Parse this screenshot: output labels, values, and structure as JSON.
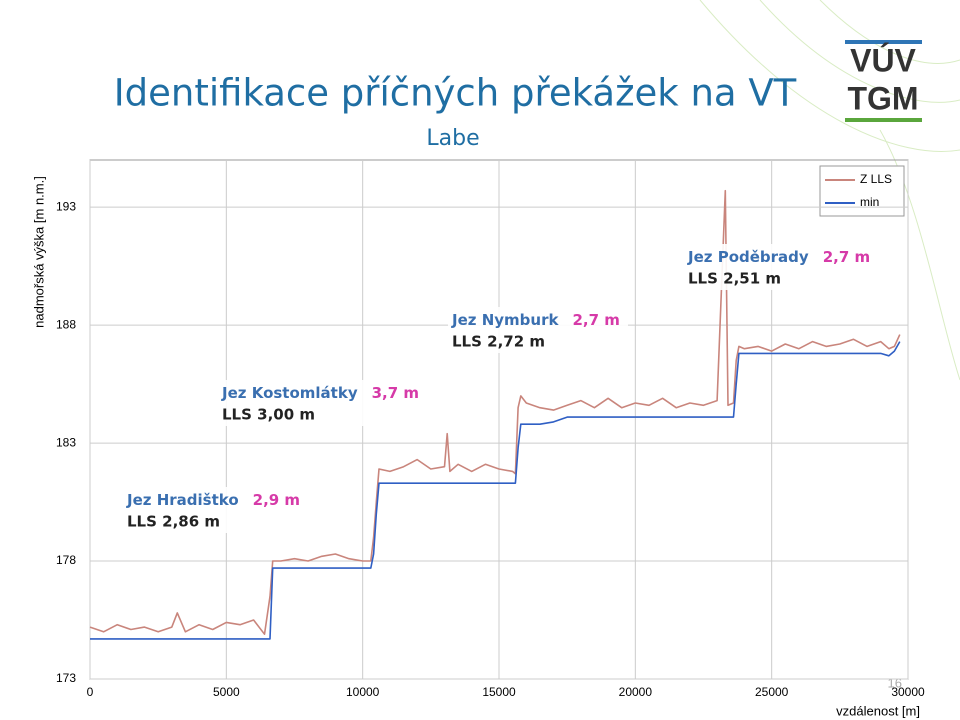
{
  "chart_data": {
    "type": "line",
    "title": "Identifikace příčných překážek na VT",
    "subtitle": "Labe",
    "ylabel": "nadmořská výška [m n.m.]",
    "xlabel": "vzdálenost [m]",
    "xlim": [
      0,
      30000
    ],
    "ylim": [
      173,
      195
    ],
    "xticks": [
      0,
      5000,
      10000,
      15000,
      20000,
      25000,
      30000
    ],
    "yticks": [
      173,
      178,
      183,
      188,
      193
    ],
    "grid": true,
    "legend": "upper right",
    "x": [
      0,
      500,
      1000,
      1500,
      2000,
      2500,
      3000,
      3200,
      3500,
      4000,
      4500,
      5000,
      5500,
      6000,
      6400,
      6600,
      6700,
      7000,
      7500,
      8000,
      8500,
      9000,
      9500,
      10000,
      10300,
      10400,
      10500,
      10600,
      11000,
      11500,
      12000,
      12500,
      13000,
      13100,
      13200,
      13500,
      14000,
      14500,
      15000,
      15500,
      15600,
      15700,
      15800,
      16000,
      16500,
      17000,
      17500,
      18000,
      18500,
      19000,
      19500,
      20000,
      20500,
      21000,
      21500,
      22000,
      22500,
      23000,
      23300,
      23400,
      23600,
      23700,
      23800,
      24000,
      24500,
      25000,
      25500,
      26000,
      26500,
      27000,
      27500,
      28000,
      28500,
      29000,
      29300,
      29500,
      29700
    ],
    "series": [
      {
        "name": "Z LLS",
        "color": "#c9857c",
        "values": [
          175.2,
          175.0,
          175.3,
          175.1,
          175.2,
          175.0,
          175.2,
          175.8,
          175.0,
          175.3,
          175.1,
          175.4,
          175.3,
          175.5,
          174.9,
          176.5,
          178.0,
          178.0,
          178.1,
          178.0,
          178.2,
          178.3,
          178.1,
          178.0,
          178.0,
          179.0,
          180.5,
          181.9,
          181.8,
          182.0,
          182.3,
          181.9,
          182.0,
          183.4,
          181.8,
          182.1,
          181.8,
          182.1,
          181.9,
          181.8,
          181.7,
          184.5,
          185.0,
          184.7,
          184.5,
          184.4,
          184.6,
          184.8,
          184.5,
          184.9,
          184.5,
          184.7,
          184.6,
          184.9,
          184.5,
          184.7,
          184.6,
          184.8,
          193.7,
          184.6,
          184.7,
          186.5,
          187.1,
          187.0,
          187.1,
          186.9,
          187.2,
          187.0,
          187.3,
          187.1,
          187.2,
          187.4,
          187.1,
          187.3,
          187.0,
          187.1,
          187.6
        ]
      },
      {
        "name": "min",
        "color": "#2f5fc4",
        "values": [
          174.7,
          174.7,
          174.7,
          174.7,
          174.7,
          174.7,
          174.7,
          174.7,
          174.7,
          174.7,
          174.7,
          174.7,
          174.7,
          174.7,
          174.7,
          174.7,
          177.7,
          177.7,
          177.7,
          177.7,
          177.7,
          177.7,
          177.7,
          177.7,
          177.7,
          178.3,
          180.0,
          181.3,
          181.3,
          181.3,
          181.3,
          181.3,
          181.3,
          181.3,
          181.3,
          181.3,
          181.3,
          181.3,
          181.3,
          181.3,
          181.3,
          182.8,
          183.8,
          183.8,
          183.8,
          183.9,
          184.1,
          184.1,
          184.1,
          184.1,
          184.1,
          184.1,
          184.1,
          184.1,
          184.1,
          184.1,
          184.1,
          184.1,
          184.1,
          184.1,
          184.1,
          185.5,
          186.8,
          186.8,
          186.8,
          186.8,
          186.8,
          186.8,
          186.8,
          186.8,
          186.8,
          186.8,
          186.8,
          186.8,
          186.7,
          186.9,
          187.3
        ]
      }
    ],
    "annotations": [
      {
        "name": "Jez Poděbrady",
        "height": "2,7 m",
        "lls": "LLS 2,51 m"
      },
      {
        "name": "Jez Nymburk",
        "height": "2,7 m",
        "lls": "LLS 2,72 m"
      },
      {
        "name": "Jez Kostomlátky",
        "height": "3,7 m",
        "lls": "LLS 3,00 m"
      },
      {
        "name": "Jez Hradištko",
        "height": "2,9 m",
        "lls": "LLS 2,86 m"
      }
    ]
  },
  "logo": {
    "line1": "VÚV",
    "line2": "TGM"
  },
  "page_number": "16"
}
